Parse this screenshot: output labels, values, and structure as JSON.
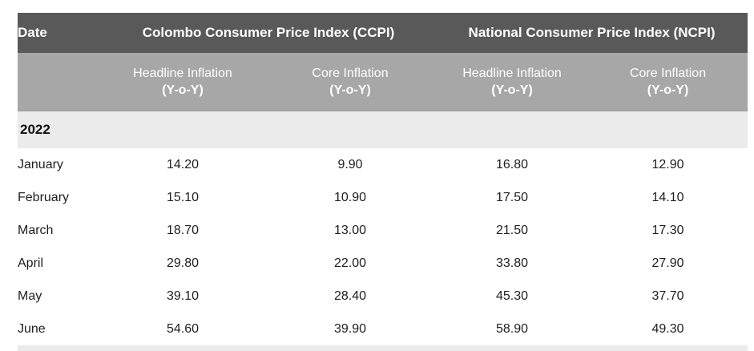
{
  "table": {
    "date_header": "Date",
    "group_headers": [
      "Colombo Consumer Price Index (CCPI)",
      "National Consumer Price Index (NCPI)"
    ],
    "sub_headers": [
      {
        "line1": "Headline Inflation",
        "line2": "(Y-o-Y)"
      },
      {
        "line1": "Core Inflation",
        "line2": "(Y-o-Y)"
      },
      {
        "line1": "Headline Inflation",
        "line2": "(Y-o-Y)"
      },
      {
        "line1": "Core Inflation",
        "line2": "(Y-o-Y)"
      }
    ],
    "section_label": "2022",
    "rows": [
      {
        "month": "January",
        "values": [
          "14.20",
          "9.90",
          "16.80",
          "12.90"
        ]
      },
      {
        "month": "February",
        "values": [
          "15.10",
          "10.90",
          "17.50",
          "14.10"
        ]
      },
      {
        "month": "March",
        "values": [
          "18.70",
          "13.00",
          "21.50",
          "17.30"
        ]
      },
      {
        "month": "April",
        "values": [
          "29.80",
          "22.00",
          "33.80",
          "27.90"
        ]
      },
      {
        "month": "May",
        "values": [
          "39.10",
          "28.40",
          "45.30",
          "37.70"
        ]
      },
      {
        "month": "June",
        "values": [
          "54.60",
          "39.90",
          "58.90",
          "49.30"
        ]
      }
    ]
  },
  "colors": {
    "header_bg": "#595959",
    "subheader_bg": "#a7a7a7",
    "section_bg": "#ebebeb",
    "header_text": "#ffffff",
    "body_text": "#1e1e1e"
  },
  "chart_data": {
    "type": "table",
    "title": "",
    "section": "2022",
    "columns": [
      "Date",
      "CCPI Headline Inflation (Y-o-Y)",
      "CCPI Core Inflation (Y-o-Y)",
      "NCPI Headline Inflation (Y-o-Y)",
      "NCPI Core Inflation (Y-o-Y)"
    ],
    "rows": [
      [
        "January",
        14.2,
        9.9,
        16.8,
        12.9
      ],
      [
        "February",
        15.1,
        10.9,
        17.5,
        14.1
      ],
      [
        "March",
        18.7,
        13.0,
        21.5,
        17.3
      ],
      [
        "April",
        29.8,
        22.0,
        33.8,
        27.9
      ],
      [
        "May",
        39.1,
        28.4,
        45.3,
        37.7
      ],
      [
        "June",
        54.6,
        39.9,
        58.9,
        49.3
      ]
    ]
  }
}
